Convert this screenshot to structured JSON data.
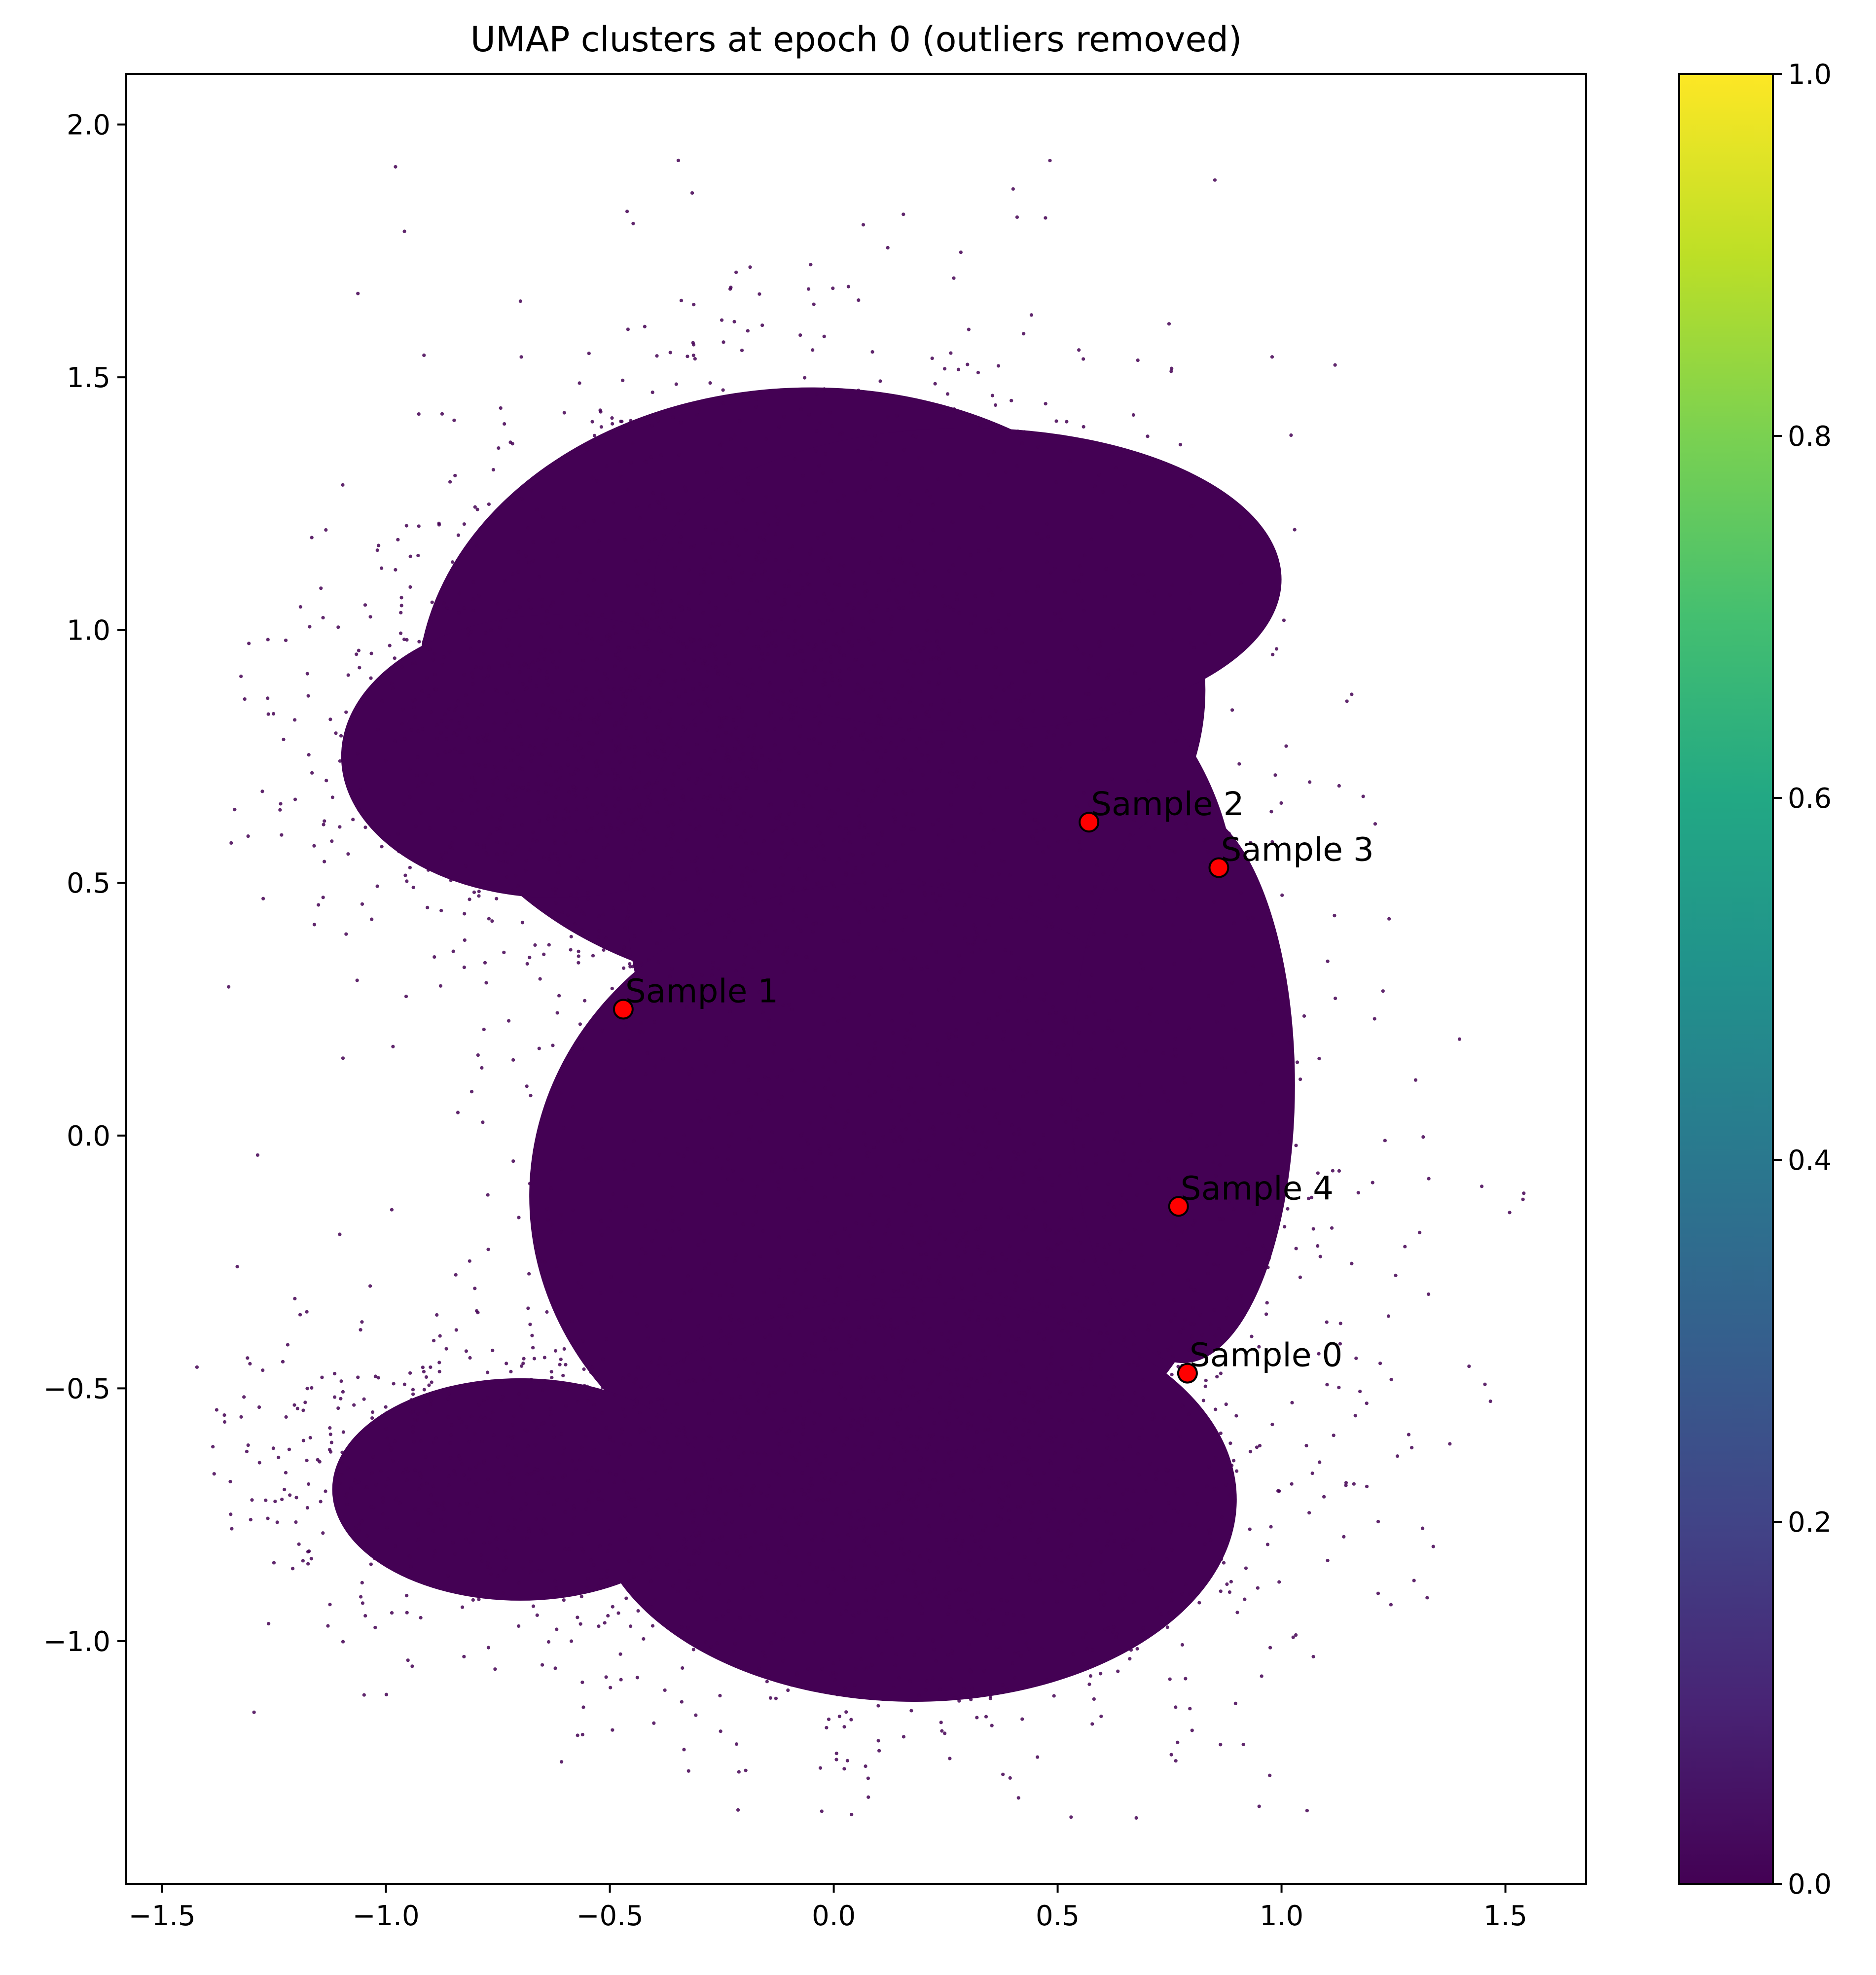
{
  "chart_data": {
    "type": "scatter",
    "title": "UMAP clusters at epoch 0 (outliers removed)",
    "xlabel": "",
    "ylabel": "",
    "xlim": [
      -1.58,
      1.68
    ],
    "ylim": [
      -1.48,
      2.1
    ],
    "xticks": [
      -1.5,
      -1.0,
      -0.5,
      0.0,
      0.5,
      1.0,
      1.5
    ],
    "xtick_labels": [
      "−1.5",
      "−1.0",
      "−0.5",
      "0.0",
      "0.5",
      "1.0",
      "1.5"
    ],
    "yticks": [
      -1.0,
      -0.5,
      0.0,
      0.5,
      1.0,
      1.5,
      2.0
    ],
    "ytick_labels": [
      "−1.0",
      "−0.5",
      "0.0",
      "0.5",
      "1.0",
      "1.5",
      "2.0"
    ],
    "grid": false,
    "colormap": "viridis",
    "point_color": "#440154",
    "highlight_color": "#ff0000",
    "colorbar": {
      "range": [
        0.0,
        1.0
      ],
      "ticks": [
        0.0,
        0.2,
        0.4,
        0.6,
        0.8,
        1.0
      ],
      "tick_labels": [
        "0.0",
        "0.2",
        "0.4",
        "0.6",
        "0.8",
        "1.0"
      ]
    },
    "samples": [
      {
        "label": "Sample 0",
        "x": 0.79,
        "y": -0.47
      },
      {
        "label": "Sample 1",
        "x": -0.47,
        "y": 0.25
      },
      {
        "label": "Sample 2",
        "x": 0.57,
        "y": 0.62
      },
      {
        "label": "Sample 3",
        "x": 0.86,
        "y": 0.53
      },
      {
        "label": "Sample 4",
        "x": 0.77,
        "y": -0.14
      }
    ]
  }
}
